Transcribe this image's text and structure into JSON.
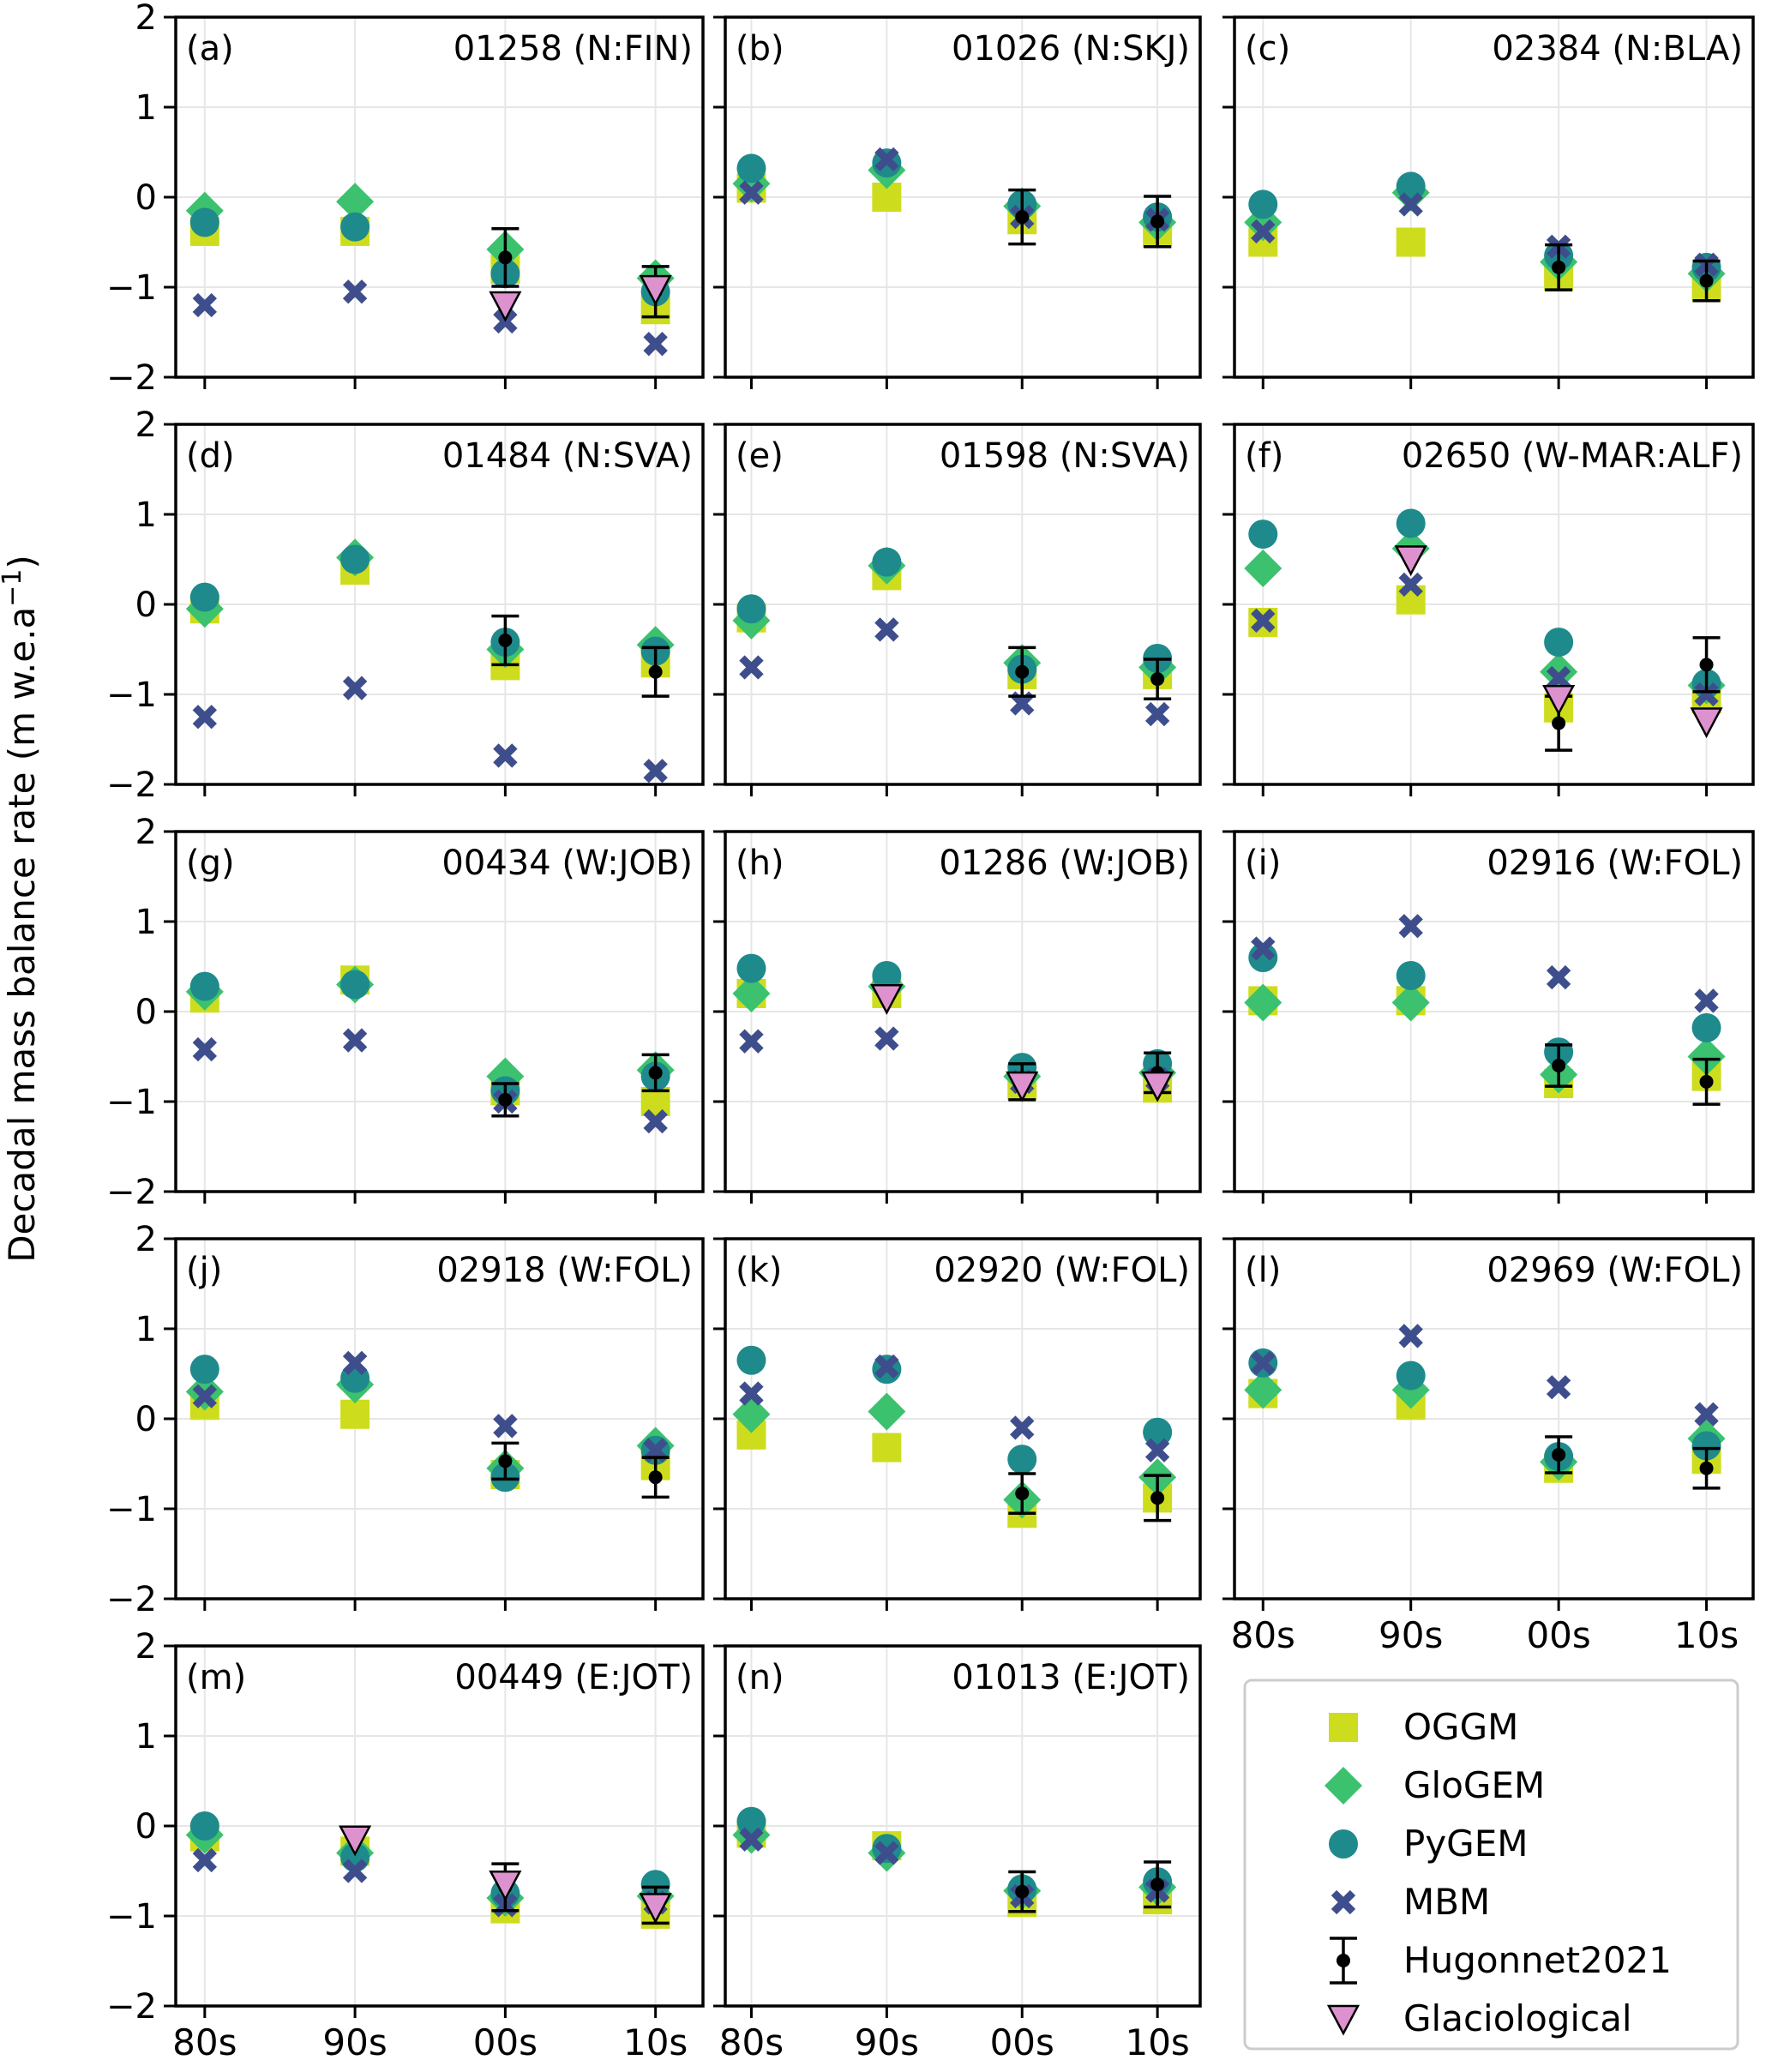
{
  "figure": {
    "ylabel": "Decadal mass balance rate (m w.e.a",
    "ylabel_sup": "−1",
    "ylabel_close": ")"
  },
  "legend": {
    "entries": [
      {
        "key": "oggm",
        "label": "OGGM"
      },
      {
        "key": "glogem",
        "label": "GloGEM"
      },
      {
        "key": "pygem",
        "label": "PyGEM"
      },
      {
        "key": "mbm",
        "label": "MBM"
      },
      {
        "key": "hugonnet",
        "label": "Hugonnet2021"
      },
      {
        "key": "glac",
        "label": "Glaciological"
      }
    ]
  },
  "colors": {
    "oggm": "#cddd1e",
    "glogem": "#3cc16e",
    "pygem": "#1e8a8c",
    "mbm": "#3e4e8c",
    "hugonnet": "#000000",
    "glac": "#dd92cf",
    "grid": "#e6e6e6"
  },
  "chart_data": {
    "type": "scatter",
    "categories": [
      "80s",
      "90s",
      "00s",
      "10s"
    ],
    "ylim": [
      -2,
      2
    ],
    "yticks": [
      2,
      1,
      0,
      -1,
      -2
    ],
    "ytick_labels": [
      "2",
      "1",
      "0",
      "−1",
      "−2"
    ],
    "ylabel": "Decadal mass balance rate (m w.e.a−1)",
    "panels": [
      {
        "letter": "(a)",
        "id": "01258 (N:FIN)",
        "oggm": [
          -0.38,
          -0.38,
          -0.8,
          -1.25
        ],
        "glogem": [
          -0.15,
          -0.05,
          -0.58,
          -0.9
        ],
        "pygem": [
          -0.28,
          -0.33,
          -0.85,
          -1.05
        ],
        "mbm": [
          -1.2,
          -1.05,
          -1.38,
          -1.63
        ],
        "hug": [
          null,
          null,
          -0.67,
          -1.05
        ],
        "hug_err": [
          null,
          null,
          0.32,
          0.28
        ],
        "glac": [
          null,
          null,
          -1.2,
          -1.02
        ]
      },
      {
        "letter": "(b)",
        "id": "01026 (N:SKJ)",
        "oggm": [
          0.1,
          0.0,
          -0.25,
          -0.4
        ],
        "glogem": [
          0.15,
          0.3,
          -0.1,
          -0.28
        ],
        "pygem": [
          0.32,
          0.38,
          -0.08,
          -0.22
        ],
        "mbm": [
          0.05,
          0.42,
          -0.22,
          -0.25
        ],
        "hug": [
          null,
          null,
          -0.22,
          -0.27
        ],
        "hug_err": [
          null,
          null,
          0.3,
          0.28
        ],
        "glac": [
          null,
          null,
          null,
          null
        ]
      },
      {
        "letter": "(c)",
        "id": "02384 (N:BLA)",
        "oggm": [
          -0.5,
          -0.5,
          -0.88,
          -1.0
        ],
        "glogem": [
          -0.28,
          0.05,
          -0.72,
          -0.85
        ],
        "pygem": [
          -0.08,
          0.12,
          -0.65,
          -0.78
        ],
        "mbm": [
          -0.38,
          -0.08,
          -0.55,
          -0.75
        ],
        "hug": [
          null,
          null,
          -0.78,
          -0.93
        ],
        "hug_err": [
          null,
          null,
          0.25,
          0.22
        ],
        "glac": [
          null,
          null,
          null,
          null
        ]
      },
      {
        "letter": "(d)",
        "id": "01484 (N:SVA)",
        "oggm": [
          -0.05,
          0.38,
          -0.68,
          -0.65
        ],
        "glogem": [
          -0.05,
          0.52,
          -0.5,
          -0.45
        ],
        "pygem": [
          0.08,
          0.5,
          -0.42,
          -0.52
        ],
        "mbm": [
          -1.25,
          -0.93,
          -1.68,
          -1.85
        ],
        "hug": [
          null,
          null,
          -0.4,
          -0.75
        ],
        "hug_err": [
          null,
          null,
          0.27,
          0.27
        ],
        "glac": [
          null,
          null,
          null,
          null
        ]
      },
      {
        "letter": "(e)",
        "id": "01598 (N:SVA)",
        "oggm": [
          -0.15,
          0.32,
          -0.78,
          -0.78
        ],
        "glogem": [
          -0.18,
          0.43,
          -0.65,
          -0.7
        ],
        "pygem": [
          -0.05,
          0.47,
          -0.72,
          -0.6
        ],
        "mbm": [
          -0.7,
          -0.28,
          -1.1,
          -1.22
        ],
        "hug": [
          null,
          null,
          -0.75,
          -0.83
        ],
        "hug_err": [
          null,
          null,
          0.27,
          0.22
        ],
        "glac": [
          null,
          null,
          null,
          null
        ]
      },
      {
        "letter": "(f)",
        "id": "02650 (W-MAR:ALF)",
        "oggm": [
          -0.2,
          0.05,
          -1.15,
          -1.05
        ],
        "glogem": [
          0.4,
          0.62,
          -0.75,
          -0.9
        ],
        "pygem": [
          0.78,
          0.9,
          -0.42,
          -0.88
        ],
        "mbm": [
          -0.18,
          0.22,
          -0.82,
          -1.0
        ],
        "hug": [
          null,
          null,
          -1.32,
          -0.67
        ],
        "hug_err": [
          null,
          null,
          0.3,
          0.3
        ],
        "glac": [
          null,
          0.5,
          -1.05,
          -1.3
        ]
      },
      {
        "letter": "(g)",
        "id": "00434 (W:JOB)",
        "oggm": [
          0.15,
          0.35,
          -0.88,
          -1.0
        ],
        "glogem": [
          0.22,
          0.3,
          -0.72,
          -0.65
        ],
        "pygem": [
          0.28,
          0.3,
          -0.88,
          -0.72
        ],
        "mbm": [
          -0.42,
          -0.32,
          -1.0,
          -1.22
        ],
        "hug": [
          null,
          null,
          -0.98,
          -0.68
        ],
        "hug_err": [
          null,
          null,
          0.18,
          0.2
        ],
        "glac": [
          null,
          null,
          null,
          null
        ]
      },
      {
        "letter": "(h)",
        "id": "01286 (W:JOB)",
        "oggm": [
          0.2,
          0.2,
          -0.82,
          -0.85
        ],
        "glogem": [
          0.2,
          0.28,
          -0.72,
          -0.68
        ],
        "pygem": [
          0.48,
          0.4,
          -0.62,
          -0.58
        ],
        "mbm": [
          -0.33,
          -0.3,
          -0.78,
          -0.75
        ],
        "hug": [
          null,
          null,
          -0.78,
          -0.68
        ],
        "hug_err": [
          null,
          null,
          0.2,
          0.22
        ],
        "glac": [
          null,
          0.15,
          -0.82,
          -0.82
        ]
      },
      {
        "letter": "(i)",
        "id": "02916 (W:FOL)",
        "oggm": [
          0.12,
          0.12,
          -0.8,
          -0.72
        ],
        "glogem": [
          0.1,
          0.1,
          -0.7,
          -0.5
        ],
        "pygem": [
          0.6,
          0.4,
          -0.45,
          -0.18
        ],
        "mbm": [
          0.7,
          0.95,
          0.38,
          0.12
        ],
        "hug": [
          null,
          null,
          -0.6,
          -0.78
        ],
        "hug_err": [
          null,
          null,
          0.23,
          0.25
        ],
        "glac": [
          null,
          null,
          null,
          null
        ]
      },
      {
        "letter": "(j)",
        "id": "02918 (W:FOL)",
        "oggm": [
          0.15,
          0.05,
          -0.62,
          -0.52
        ],
        "glogem": [
          0.3,
          0.38,
          -0.55,
          -0.3
        ],
        "pygem": [
          0.55,
          0.45,
          -0.65,
          -0.35
        ],
        "mbm": [
          0.25,
          0.62,
          -0.08,
          -0.35
        ],
        "hug": [
          null,
          null,
          -0.47,
          -0.65
        ],
        "hug_err": [
          null,
          null,
          0.2,
          0.22
        ],
        "glac": [
          null,
          null,
          null,
          null
        ]
      },
      {
        "letter": "(k)",
        "id": "02920 (W:FOL)",
        "oggm": [
          -0.18,
          -0.32,
          -1.05,
          -0.88
        ],
        "glogem": [
          0.05,
          0.08,
          -0.9,
          -0.65
        ],
        "pygem": [
          0.65,
          0.55,
          -0.45,
          -0.15
        ],
        "mbm": [
          0.28,
          0.58,
          -0.1,
          -0.35
        ],
        "hug": [
          null,
          null,
          -0.83,
          -0.88
        ],
        "hug_err": [
          null,
          null,
          0.22,
          0.25
        ],
        "glac": [
          null,
          null,
          null,
          null
        ]
      },
      {
        "letter": "(l)",
        "id": "02969 (W:FOL)",
        "oggm": [
          0.28,
          0.15,
          -0.55,
          -0.45
        ],
        "glogem": [
          0.32,
          0.32,
          -0.48,
          -0.22
        ],
        "pygem": [
          0.62,
          0.48,
          -0.42,
          -0.3
        ],
        "mbm": [
          0.62,
          0.92,
          0.35,
          0.05
        ],
        "hug": [
          null,
          null,
          -0.4,
          -0.55
        ],
        "hug_err": [
          null,
          null,
          0.2,
          0.22
        ],
        "glac": [
          null,
          null,
          null,
          null
        ]
      },
      {
        "letter": "(m)",
        "id": "00449 (E:JOT)",
        "oggm": [
          -0.12,
          -0.28,
          -0.92,
          -0.98
        ],
        "glogem": [
          -0.1,
          -0.3,
          -0.8,
          -0.78
        ],
        "pygem": [
          0.0,
          -0.35,
          -0.75,
          -0.65
        ],
        "mbm": [
          -0.38,
          -0.5,
          -0.88,
          -0.85
        ],
        "hug": [
          null,
          null,
          -0.68,
          -0.88
        ],
        "hug_err": [
          null,
          null,
          0.26,
          0.2
        ],
        "glac": [
          null,
          -0.15,
          -0.65,
          -0.9
        ]
      },
      {
        "letter": "(n)",
        "id": "01013 (E:JOT)",
        "oggm": [
          -0.08,
          -0.22,
          -0.85,
          -0.82
        ],
        "glogem": [
          -0.1,
          -0.3,
          -0.72,
          -0.68
        ],
        "pygem": [
          0.05,
          -0.25,
          -0.7,
          -0.62
        ],
        "mbm": [
          -0.15,
          -0.3,
          -0.78,
          -0.72
        ],
        "hug": [
          null,
          null,
          -0.73,
          -0.65
        ],
        "hug_err": [
          null,
          null,
          0.22,
          0.25
        ],
        "glac": [
          null,
          null,
          null,
          null
        ]
      }
    ]
  }
}
